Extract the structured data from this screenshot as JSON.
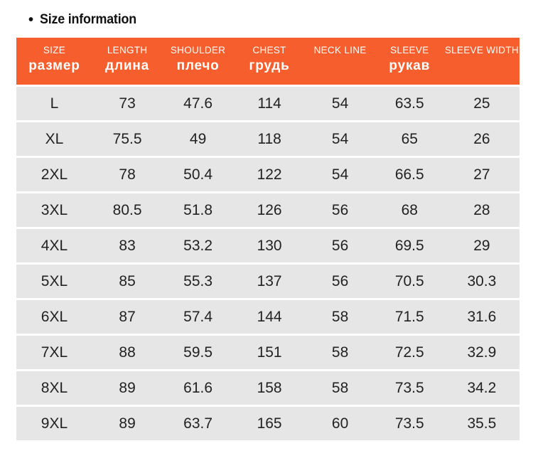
{
  "page": {
    "title_bullet": "•",
    "title": "Size information"
  },
  "colors": {
    "header_bg": "#f65f2d",
    "header_text": "#ffffff",
    "row_bg": "#e6e6e6",
    "body_text": "#222222",
    "title_text": "#111111",
    "page_bg": "#ffffff"
  },
  "chart_data": {
    "type": "table",
    "title": "Size information",
    "columns": [
      {
        "en": "SIZE",
        "ru": "размер"
      },
      {
        "en": "LENGTH",
        "ru": "длина"
      },
      {
        "en": "SHOULDER",
        "ru": "плечо"
      },
      {
        "en": "CHEST",
        "ru": "грудь"
      },
      {
        "en": "NECK LINE",
        "ru": ""
      },
      {
        "en": "SLEEVE",
        "ru": "рукав"
      },
      {
        "en": "SLEEVE WIDTH",
        "ru": ""
      }
    ],
    "rows": [
      [
        "L",
        "73",
        "47.6",
        "114",
        "54",
        "63.5",
        "25"
      ],
      [
        "XL",
        "75.5",
        "49",
        "118",
        "54",
        "65",
        "26"
      ],
      [
        "2XL",
        "78",
        "50.4",
        "122",
        "54",
        "66.5",
        "27"
      ],
      [
        "3XL",
        "80.5",
        "51.8",
        "126",
        "56",
        "68",
        "28"
      ],
      [
        "4XL",
        "83",
        "53.2",
        "130",
        "56",
        "69.5",
        "29"
      ],
      [
        "5XL",
        "85",
        "55.3",
        "137",
        "56",
        "70.5",
        "30.3"
      ],
      [
        "6XL",
        "87",
        "57.4",
        "144",
        "58",
        "71.5",
        "31.6"
      ],
      [
        "7XL",
        "88",
        "59.5",
        "151",
        "58",
        "72.5",
        "32.9"
      ],
      [
        "8XL",
        "89",
        "61.6",
        "158",
        "58",
        "73.5",
        "34.2"
      ],
      [
        "9XL",
        "89",
        "63.7",
        "165",
        "60",
        "73.5",
        "35.5"
      ]
    ]
  }
}
